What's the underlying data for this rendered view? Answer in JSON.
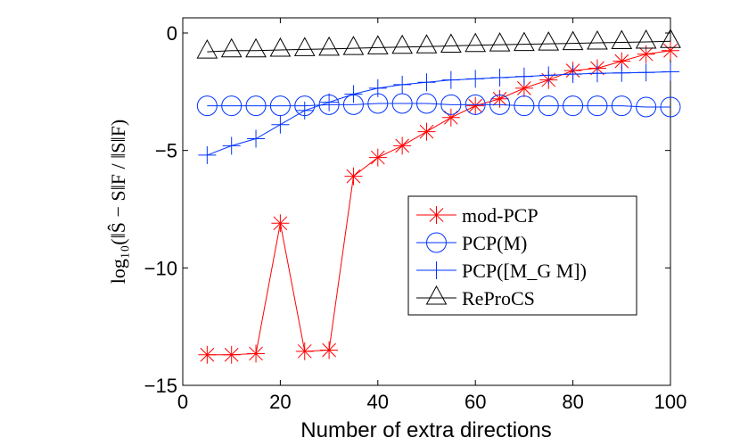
{
  "chart_data": {
    "type": "line",
    "title": "",
    "xlabel": "Number of extra directions",
    "ylabel": "log₁₀(‖Ŝ − S‖F / ‖S‖F)",
    "xlim": [
      0,
      100
    ],
    "ylim": [
      -15,
      0
    ],
    "x_ticks": [
      0,
      20,
      40,
      60,
      80,
      100
    ],
    "y_ticks": [
      0,
      -5,
      -10,
      -15
    ],
    "x_tick_labels": [
      "0",
      "20",
      "40",
      "60",
      "80",
      "100"
    ],
    "y_tick_labels": [
      "0",
      "−5",
      "−10",
      "−15"
    ],
    "grid": false,
    "legend_position": "center-right",
    "x": [
      5,
      10,
      15,
      20,
      25,
      30,
      35,
      40,
      45,
      50,
      55,
      60,
      65,
      70,
      75,
      80,
      85,
      90,
      95,
      100
    ],
    "series": [
      {
        "name": "mod-PCP",
        "color": "#ff0000",
        "marker": "asterisk",
        "values": [
          -13.7,
          -13.7,
          -13.65,
          -8.1,
          -13.55,
          -13.5,
          -6.1,
          -5.3,
          -4.8,
          -4.2,
          -3.6,
          -3.1,
          -2.8,
          -2.35,
          -2.0,
          -1.6,
          -1.5,
          -1.2,
          -0.9,
          -0.75
        ]
      },
      {
        "name": "PCP(M)",
        "color": "#0033ff",
        "marker": "circle",
        "values": [
          -3.1,
          -3.1,
          -3.1,
          -3.1,
          -3.1,
          -3.05,
          -3.05,
          -3.0,
          -3.0,
          -3.0,
          -3.05,
          -3.05,
          -3.05,
          -3.1,
          -3.1,
          -3.1,
          -3.1,
          -3.1,
          -3.15,
          -3.15
        ]
      },
      {
        "name": "PCP([M_G M])",
        "color": "#0033ff",
        "marker": "plus",
        "values": [
          -5.2,
          -4.8,
          -4.5,
          -3.9,
          -3.3,
          -2.95,
          -2.6,
          -2.35,
          -2.2,
          -2.1,
          -2.0,
          -1.95,
          -1.9,
          -1.85,
          -1.8,
          -1.75,
          -1.72,
          -1.7,
          -1.68,
          -1.65
        ]
      },
      {
        "name": "ReProCS",
        "color": "#000000",
        "marker": "triangle",
        "values": [
          -0.8,
          -0.75,
          -0.75,
          -0.72,
          -0.7,
          -0.68,
          -0.65,
          -0.62,
          -0.6,
          -0.58,
          -0.55,
          -0.52,
          -0.5,
          -0.48,
          -0.46,
          -0.44,
          -0.42,
          -0.4,
          -0.38,
          -0.35
        ]
      }
    ]
  }
}
